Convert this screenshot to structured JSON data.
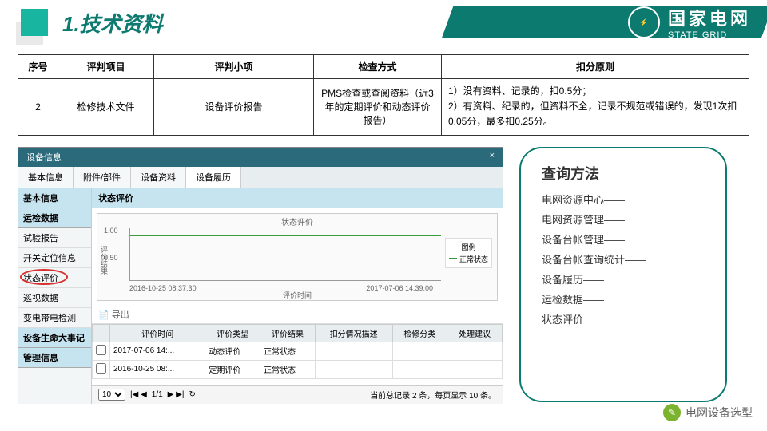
{
  "header": {
    "title": "1.技术资料",
    "brand_cn": "国家电网",
    "brand_en": "STATE GRID"
  },
  "crit": {
    "headers": [
      "序号",
      "评判项目",
      "评判小项",
      "检查方式",
      "扣分原则"
    ],
    "row": {
      "seq": "2",
      "item": "检修技术文件",
      "sub": "设备评价报告",
      "method": "PMS检查或查阅资料（近3年的定期评价和动态评价报告）",
      "rule": "1）没有资料、记录的，扣0.5分；\n2）有资料、纪录的，但资料不全，记录不规范或错误的，发现1次扣0.05分，最多扣0.25分。"
    }
  },
  "ss": {
    "win_title": "设备信息",
    "close": "×",
    "top_tabs": [
      "基本信息",
      "附件/部件",
      "设备资料",
      "设备履历"
    ],
    "active_top_tab": 3,
    "side": {
      "g1": "基本信息",
      "g2": "运检数据",
      "g2_items": [
        "试验报告",
        "开关定位信息",
        "状态评价",
        "巡视数据",
        "变电带电检测"
      ],
      "g3": "设备生命大事记",
      "g4": "管理信息"
    },
    "panel_head": "状态评价",
    "chart": {
      "title": "状态评价",
      "y_max": "1.00",
      "y_mid": "0.50",
      "y_label": "评价结果",
      "x1": "2016-10-25 08:37:30",
      "x2": "2017-07-06 14:39:00",
      "x_label": "评价时间",
      "legend_title": "图例",
      "legend_item": "正常状态",
      "line_color": "#3a9c3a"
    },
    "export": "📄 导出",
    "grid": {
      "cols": [
        "",
        "评价时间",
        "评价类型",
        "评价结果",
        "扣分情况描述",
        "检修分类",
        "处理建议"
      ],
      "rows": [
        [
          "",
          "2017-07-06 14:...",
          "动态评价",
          "正常状态",
          "",
          "",
          ""
        ],
        [
          "",
          "2016-10-25 08:...",
          "定期评价",
          "正常状态",
          "",
          "",
          ""
        ]
      ]
    },
    "pager": {
      "size": "10",
      "arrows": "|◀ ◀",
      "page": "1/1",
      "arrows2": "▶ ▶|",
      "refresh": "↻",
      "summary": "当前总记录 2 条，每页显示 10 条。"
    }
  },
  "query": {
    "title": "查询方法",
    "lines": [
      "电网资源中心——",
      "电网资源管理——",
      "设备台帐管理——",
      "设备台帐查询统计——",
      "设备履历——",
      "运检数据——",
      "状态评价"
    ]
  },
  "watermark": "电网设备选型"
}
